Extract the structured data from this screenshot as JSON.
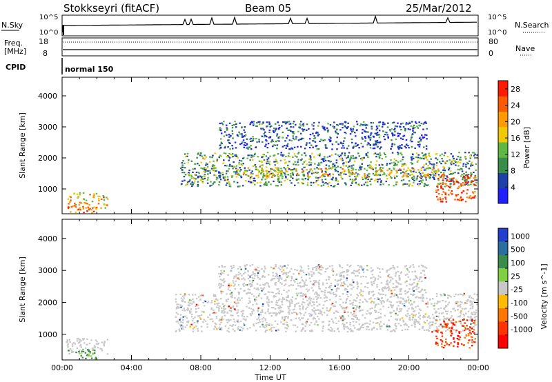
{
  "header": {
    "station": "Stokkseyri (fitACF)",
    "beam": "Beam 05",
    "date": "25/Mar/2012"
  },
  "status_panels": {
    "nsky_label": "N.Sky",
    "nsky_ticks": [
      "10^5",
      "10^0"
    ],
    "nsearch_label": "N.Search",
    "freq_label_1": "Freq.",
    "freq_label_2": "[MHz]",
    "freq_ticks": [
      "18",
      "8"
    ],
    "nave_label": "Nave",
    "nave_ticks": [
      "80",
      "0"
    ],
    "cpid_label": "CPID",
    "cpid_value": "normal 150"
  },
  "colors": {
    "power_scale": [
      "#1f1fff",
      "#1f3fa8",
      "#3a8c4a",
      "#5fb844",
      "#f0c800",
      "#ff9a00",
      "#ff5a00",
      "#ff1a00"
    ],
    "velocity_scale": [
      "#1f3fcc",
      "#2a6fa0",
      "#3a8c4a",
      "#7fd040",
      "#c8c8c8",
      "#ffbb00",
      "#ff7700",
      "#ff3300",
      "#ff0000"
    ],
    "grey": "#c8c8c8"
  },
  "chart_data": [
    {
      "type": "heatmap",
      "panel": "power",
      "ylabel": "Slant Range [km]",
      "ylim": [
        200,
        4600
      ],
      "y_ticks": [
        "1000",
        "2000",
        "3000",
        "4000"
      ],
      "colorbar_label": "Power [dB]",
      "colorbar_ticks": [
        "4",
        "8",
        "12",
        "16",
        "20",
        "24",
        "28"
      ],
      "colorbar_range": [
        0,
        30
      ],
      "echo_regions": [
        {
          "t_start": 0.2,
          "t_end": 2.6,
          "range_min": 400,
          "range_max": 900,
          "power": 20
        },
        {
          "t_start": 0.2,
          "t_end": 2.0,
          "range_min": 250,
          "range_max": 450,
          "power": 22
        },
        {
          "t_start": 6.8,
          "t_end": 23.9,
          "range_min": 1100,
          "range_max": 2200,
          "power": 10
        },
        {
          "t_start": 10.0,
          "t_end": 22.0,
          "range_min": 1400,
          "range_max": 1700,
          "power": 18
        },
        {
          "t_start": 9.0,
          "t_end": 21.0,
          "range_min": 2300,
          "range_max": 3200,
          "power": 6
        },
        {
          "t_start": 21.5,
          "t_end": 23.8,
          "range_min": 600,
          "range_max": 1500,
          "power": 26
        }
      ]
    },
    {
      "type": "heatmap",
      "panel": "velocity",
      "ylabel": "Slant Range [km]",
      "xlabel": "Time UT",
      "ylim": [
        200,
        4600
      ],
      "y_ticks": [
        "1000",
        "2000",
        "3000",
        "4000"
      ],
      "x_ticks": [
        "00:00",
        "04:00",
        "08:00",
        "12:00",
        "16:00",
        "20:00",
        "00:00"
      ],
      "xlim": [
        0,
        24
      ],
      "colorbar_label": "Velocity [m s^-1]",
      "colorbar_ticks": [
        "1000",
        "500",
        "100",
        "25",
        "-25",
        "-100",
        "-500",
        "-1000"
      ],
      "echo_regions": [
        {
          "t_start": 0.2,
          "t_end": 2.6,
          "range_min": 400,
          "range_max": 900,
          "velocity": 0
        },
        {
          "t_start": 0.3,
          "t_end": 2.0,
          "range_min": 250,
          "range_max": 550,
          "velocity": 300
        },
        {
          "t_start": 6.5,
          "t_end": 23.9,
          "range_min": 1100,
          "range_max": 2300,
          "velocity": 0
        },
        {
          "t_start": 9.0,
          "t_end": 21.0,
          "range_min": 2300,
          "range_max": 3200,
          "velocity": 0
        },
        {
          "t_start": 21.5,
          "t_end": 23.8,
          "range_min": 600,
          "range_max": 1500,
          "velocity": -600
        }
      ]
    }
  ]
}
